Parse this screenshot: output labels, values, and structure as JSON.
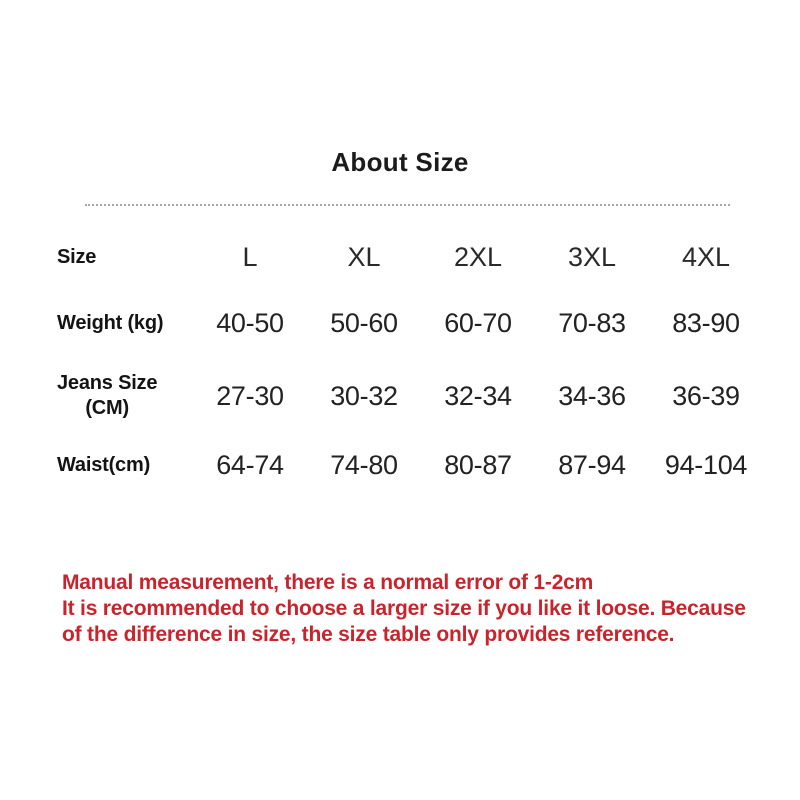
{
  "page": {
    "title": "About Size"
  },
  "table": {
    "corner_label": "Size",
    "columns": [
      "L",
      "XL",
      "2XL",
      "3XL",
      "4XL"
    ],
    "rows": [
      {
        "label": "Weight (kg)",
        "values": [
          "40-50",
          "50-60",
          "60-70",
          "70-83",
          "83-90"
        ]
      },
      {
        "label": "Jeans Size (CM)",
        "label_lines": [
          "Jeans Size",
          "(CM)"
        ],
        "values": [
          "27-30",
          "30-32",
          "32-34",
          "34-36",
          "36-39"
        ]
      },
      {
        "label": "Waist(cm)",
        "values": [
          "64-74",
          "74-80",
          "80-87",
          "87-94",
          "94-104"
        ]
      }
    ]
  },
  "note": {
    "color": "#c9242b",
    "lines": [
      "Manual measurement, there is a normal error of 1-2cm",
      "It is recommended to choose a larger size if you like it loose. Because",
      "of the difference in size, the size table only provides reference."
    ]
  }
}
